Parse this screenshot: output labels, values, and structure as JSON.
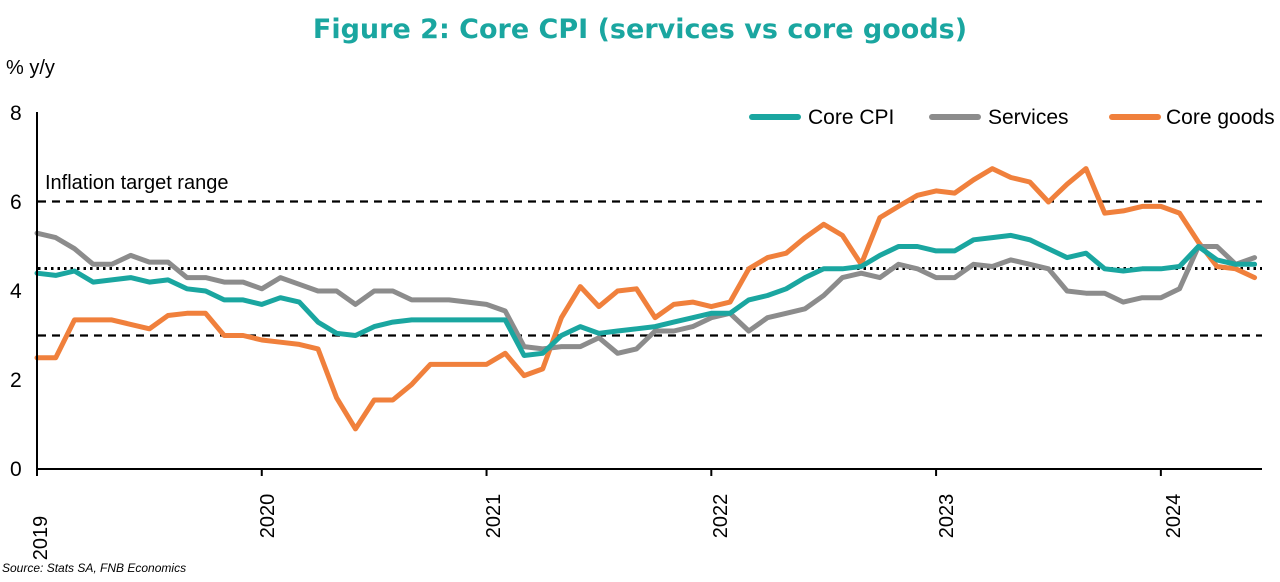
{
  "chart_data": {
    "type": "line",
    "title": "Figure 2: Core CPI (services vs core goods)",
    "ylabel": "% y/y",
    "source": "Source: Stats SA, FNB Economics",
    "annotation": "Inflation target range",
    "ylim": [
      0,
      8
    ],
    "yticks": [
      "0",
      "2",
      "4",
      "6",
      "8"
    ],
    "xlim": [
      2019.0,
      2024.45
    ],
    "xticks": [
      "2019",
      "2020",
      "2021",
      "2022",
      "2023",
      "2024"
    ],
    "target_range": [
      3,
      6
    ],
    "target_midpoint": 4.5,
    "legend_position": "top-right",
    "colors": {
      "core_cpi": "#1aa6a0",
      "services": "#8c8c8c",
      "core_goods": "#f0803c"
    },
    "series": [
      {
        "name": "Core CPI",
        "key": "core_cpi",
        "x": [
          2019.0,
          2019.083,
          2019.167,
          2019.25,
          2019.333,
          2019.417,
          2019.5,
          2019.583,
          2019.667,
          2019.75,
          2019.833,
          2019.917,
          2020.0,
          2020.083,
          2020.167,
          2020.25,
          2020.333,
          2020.417,
          2020.5,
          2020.583,
          2020.667,
          2020.75,
          2020.833,
          2020.917,
          2021.0,
          2021.083,
          2021.167,
          2021.25,
          2021.333,
          2021.417,
          2021.5,
          2021.583,
          2021.667,
          2021.75,
          2021.833,
          2021.917,
          2022.0,
          2022.083,
          2022.167,
          2022.25,
          2022.333,
          2022.417,
          2022.5,
          2022.583,
          2022.667,
          2022.75,
          2022.833,
          2022.917,
          2023.0,
          2023.083,
          2023.167,
          2023.25,
          2023.333,
          2023.417,
          2023.5,
          2023.583,
          2023.667,
          2023.75,
          2023.833,
          2023.917,
          2024.0,
          2024.083,
          2024.167,
          2024.25,
          2024.333,
          2024.417
        ],
        "values": [
          4.4,
          4.35,
          4.45,
          4.2,
          4.25,
          4.3,
          4.2,
          4.25,
          4.05,
          4.0,
          3.8,
          3.8,
          3.7,
          3.85,
          3.75,
          3.3,
          3.05,
          3.0,
          3.2,
          3.3,
          3.35,
          3.35,
          3.35,
          3.35,
          3.35,
          3.35,
          2.55,
          2.6,
          3.0,
          3.2,
          3.05,
          3.1,
          3.15,
          3.2,
          3.3,
          3.4,
          3.5,
          3.5,
          3.8,
          3.9,
          4.05,
          4.3,
          4.5,
          4.5,
          4.55,
          4.8,
          5.0,
          5.0,
          4.9,
          4.9,
          5.15,
          5.2,
          5.25,
          5.15,
          4.95,
          4.75,
          4.85,
          4.5,
          4.45,
          4.5,
          4.5,
          4.55,
          5.0,
          4.7,
          4.6,
          4.6
        ]
      },
      {
        "name": "Services",
        "key": "services",
        "x": [
          2019.0,
          2019.083,
          2019.167,
          2019.25,
          2019.333,
          2019.417,
          2019.5,
          2019.583,
          2019.667,
          2019.75,
          2019.833,
          2019.917,
          2020.0,
          2020.083,
          2020.167,
          2020.25,
          2020.333,
          2020.417,
          2020.5,
          2020.583,
          2020.667,
          2020.75,
          2020.833,
          2020.917,
          2021.0,
          2021.083,
          2021.167,
          2021.25,
          2021.333,
          2021.417,
          2021.5,
          2021.583,
          2021.667,
          2021.75,
          2021.833,
          2021.917,
          2022.0,
          2022.083,
          2022.167,
          2022.25,
          2022.333,
          2022.417,
          2022.5,
          2022.583,
          2022.667,
          2022.75,
          2022.833,
          2022.917,
          2023.0,
          2023.083,
          2023.167,
          2023.25,
          2023.333,
          2023.417,
          2023.5,
          2023.583,
          2023.667,
          2023.75,
          2023.833,
          2023.917,
          2024.0,
          2024.083,
          2024.167,
          2024.25,
          2024.333,
          2024.417
        ],
        "values": [
          5.3,
          5.2,
          4.95,
          4.6,
          4.6,
          4.8,
          4.65,
          4.65,
          4.3,
          4.3,
          4.2,
          4.2,
          4.05,
          4.3,
          4.15,
          4.0,
          4.0,
          3.7,
          4.0,
          4.0,
          3.8,
          3.8,
          3.8,
          3.75,
          3.7,
          3.55,
          2.75,
          2.7,
          2.75,
          2.75,
          2.95,
          2.6,
          2.7,
          3.1,
          3.1,
          3.2,
          3.4,
          3.5,
          3.1,
          3.4,
          3.5,
          3.6,
          3.9,
          4.3,
          4.4,
          4.3,
          4.6,
          4.5,
          4.3,
          4.3,
          4.6,
          4.55,
          4.7,
          4.6,
          4.5,
          4.0,
          3.95,
          3.95,
          3.75,
          3.85,
          3.85,
          4.05,
          5.0,
          5.0,
          4.6,
          4.75
        ]
      },
      {
        "name": "Core goods",
        "key": "core_goods",
        "x": [
          2019.0,
          2019.083,
          2019.167,
          2019.25,
          2019.333,
          2019.417,
          2019.5,
          2019.583,
          2019.667,
          2019.75,
          2019.833,
          2019.917,
          2020.0,
          2020.083,
          2020.167,
          2020.25,
          2020.333,
          2020.417,
          2020.5,
          2020.583,
          2020.667,
          2020.75,
          2020.833,
          2020.917,
          2021.0,
          2021.083,
          2021.167,
          2021.25,
          2021.333,
          2021.417,
          2021.5,
          2021.583,
          2021.667,
          2021.75,
          2021.833,
          2021.917,
          2022.0,
          2022.083,
          2022.167,
          2022.25,
          2022.333,
          2022.417,
          2022.5,
          2022.583,
          2022.667,
          2022.75,
          2022.833,
          2022.917,
          2023.0,
          2023.083,
          2023.167,
          2023.25,
          2023.333,
          2023.417,
          2023.5,
          2023.583,
          2023.667,
          2023.75,
          2023.833,
          2023.917,
          2024.0,
          2024.083,
          2024.167,
          2024.25,
          2024.333,
          2024.417
        ],
        "values": [
          2.5,
          2.5,
          3.35,
          3.35,
          3.35,
          3.25,
          3.15,
          3.45,
          3.5,
          3.5,
          3.0,
          3.0,
          2.9,
          2.85,
          2.8,
          2.7,
          1.6,
          0.9,
          1.55,
          1.55,
          1.9,
          2.35,
          2.35,
          2.35,
          2.35,
          2.6,
          2.1,
          2.25,
          3.4,
          4.1,
          3.65,
          4.0,
          4.05,
          3.4,
          3.7,
          3.75,
          3.65,
          3.75,
          4.5,
          4.75,
          4.85,
          5.2,
          5.5,
          5.25,
          4.6,
          5.65,
          5.9,
          6.15,
          6.25,
          6.2,
          6.5,
          6.75,
          6.55,
          6.45,
          6.0,
          6.4,
          6.75,
          5.75,
          5.8,
          5.9,
          5.9,
          5.75,
          5.1,
          4.55,
          4.5,
          4.3
        ]
      }
    ]
  }
}
